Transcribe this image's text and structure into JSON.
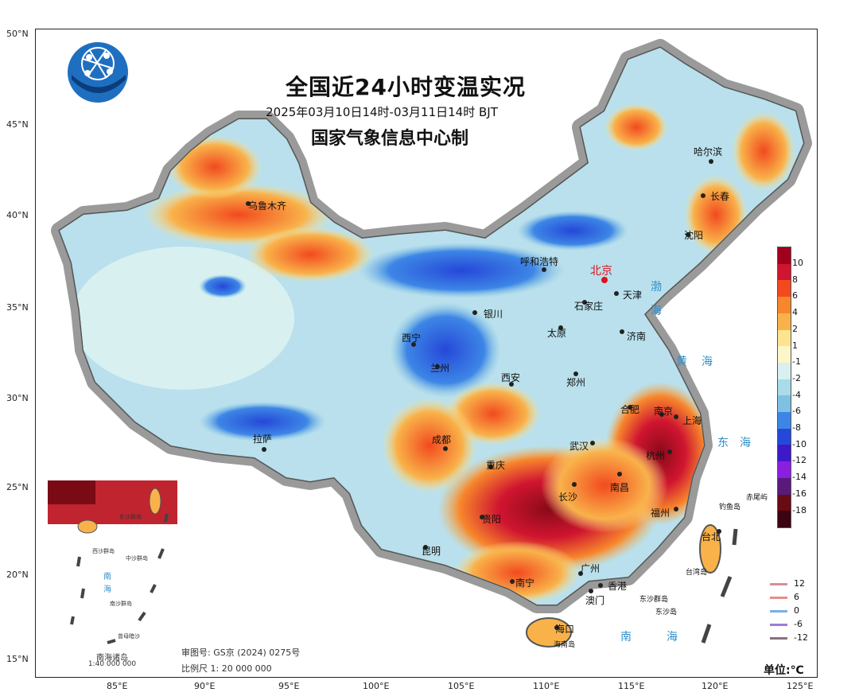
{
  "title": {
    "main": "全国近24小时变温实况",
    "period": "2025年03月10日14时-03月11日14时  BJT",
    "producer": "国家气象信息中心制"
  },
  "axes": {
    "lat_labels": [
      "50°N",
      "45°N",
      "40°N",
      "35°N",
      "30°N",
      "25°N",
      "20°N",
      "15°N"
    ],
    "lon_labels": [
      "85°E",
      "90°E",
      "95°E",
      "100°E",
      "105°E",
      "110°E",
      "115°E",
      "120°E",
      "125°E"
    ]
  },
  "cities": [
    {
      "name": "乌鲁木齐",
      "capital": false
    },
    {
      "name": "哈尔滨",
      "capital": false
    },
    {
      "name": "长春",
      "capital": false
    },
    {
      "name": "沈阳",
      "capital": false
    },
    {
      "name": "呼和浩特",
      "capital": false
    },
    {
      "name": "北京",
      "capital": true
    },
    {
      "name": "天津",
      "capital": false
    },
    {
      "name": "石家庄",
      "capital": false
    },
    {
      "name": "银川",
      "capital": false
    },
    {
      "name": "太原",
      "capital": false
    },
    {
      "name": "济南",
      "capital": false
    },
    {
      "name": "西宁",
      "capital": false
    },
    {
      "name": "兰州",
      "capital": false
    },
    {
      "name": "西安",
      "capital": false
    },
    {
      "name": "郑州",
      "capital": false
    },
    {
      "name": "合肥",
      "capital": false
    },
    {
      "name": "南京",
      "capital": false
    },
    {
      "name": "上海",
      "capital": false
    },
    {
      "name": "拉萨",
      "capital": false
    },
    {
      "name": "成都",
      "capital": false
    },
    {
      "name": "武汉",
      "capital": false
    },
    {
      "name": "杭州",
      "capital": false
    },
    {
      "name": "重庆",
      "capital": false
    },
    {
      "name": "长沙",
      "capital": false
    },
    {
      "name": "南昌",
      "capital": false
    },
    {
      "name": "贵阳",
      "capital": false
    },
    {
      "name": "福州",
      "capital": false
    },
    {
      "name": "昆明",
      "capital": false
    },
    {
      "name": "台北",
      "capital": false
    },
    {
      "name": "广州",
      "capital": false
    },
    {
      "name": "南宁",
      "capital": false
    },
    {
      "name": "香港",
      "capital": false
    },
    {
      "name": "澳门",
      "capital": false
    },
    {
      "name": "海口",
      "capital": false
    },
    {
      "name": "钓鱼岛",
      "capital": false
    },
    {
      "name": "赤尾屿",
      "capital": false
    },
    {
      "name": "台湾岛",
      "capital": false
    },
    {
      "name": "东沙群岛",
      "capital": false
    },
    {
      "name": "东沙岛",
      "capital": false
    },
    {
      "name": "海南岛",
      "capital": false
    }
  ],
  "seas": [
    "渤",
    "海",
    "黄",
    "海",
    "东",
    "海",
    "南",
    "海"
  ],
  "legend": {
    "labels": [
      "10",
      "8",
      "6",
      "4",
      "2",
      "1",
      "-1",
      "-2",
      "-4",
      "-6",
      "-8",
      "-10",
      "-12",
      "-14",
      "-16",
      "-18"
    ],
    "colors": [
      "#a0001e",
      "#d01530",
      "#f24a1e",
      "#f7872c",
      "#f9b24a",
      "#fde58f",
      "#fdf6c8",
      "#d8f0f0",
      "#a9dbe8",
      "#7fc1e3",
      "#3d86e6",
      "#2548d8",
      "#3d19c9",
      "#8a1fe0",
      "#5a1a7a",
      "#6a0a14",
      "#3a0510"
    ],
    "line_labels": [
      "12",
      "6",
      "0",
      "-6",
      "-12"
    ],
    "line_colors": [
      "#d98f95",
      "#e98b8a",
      "#7ab0e8",
      "#9a7ed6",
      "#8c6f7a"
    ],
    "unit": "单位:℃"
  },
  "inset": {
    "title": "南海诸岛",
    "scale": "1:40 000 000",
    "labels": [
      "东沙群岛",
      "西沙群岛",
      "中沙群岛",
      "南沙群岛",
      "南",
      "海",
      "曾母暗沙"
    ]
  },
  "notes": {
    "approval": "审图号: GS京 (2024) 0275号",
    "scale": "比例尺 1: 20 000 000"
  }
}
